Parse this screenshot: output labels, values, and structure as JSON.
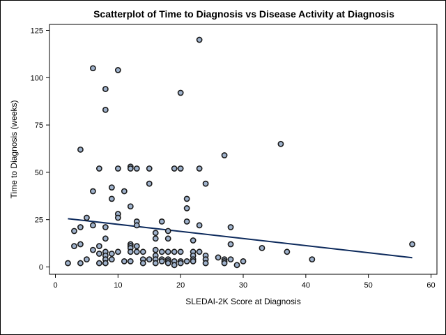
{
  "chart_data": {
    "type": "scatter",
    "title": "Scatterplot of Time to Diagnosis vs Disease Activity at Diagnosis",
    "xlabel": "SLEDAI-2K Score at Diagnosis",
    "ylabel": "Time to Diagnosis (weeks)",
    "xlim": [
      0,
      60
    ],
    "ylim": [
      -5,
      130
    ],
    "xticks": [
      0,
      10,
      20,
      30,
      40,
      50,
      60
    ],
    "yticks": [
      0,
      25,
      50,
      75,
      100,
      125
    ],
    "grid": false,
    "marker_color": "#9fb2cc",
    "marker_edge_color": "#1a1a1a",
    "trendline_color": "#0d2a5c",
    "trendline": {
      "x": [
        2,
        57
      ],
      "y": [
        25.5,
        4.9
      ]
    },
    "points": [
      {
        "x": 2,
        "y": 2
      },
      {
        "x": 3,
        "y": 19
      },
      {
        "x": 3,
        "y": 11
      },
      {
        "x": 4,
        "y": 62
      },
      {
        "x": 4,
        "y": 21
      },
      {
        "x": 4,
        "y": 12
      },
      {
        "x": 4,
        "y": 2
      },
      {
        "x": 5,
        "y": 26
      },
      {
        "x": 5,
        "y": 4
      },
      {
        "x": 6,
        "y": 105
      },
      {
        "x": 6,
        "y": 40
      },
      {
        "x": 6,
        "y": 22
      },
      {
        "x": 6,
        "y": 9
      },
      {
        "x": 7,
        "y": 52
      },
      {
        "x": 7,
        "y": 11
      },
      {
        "x": 7,
        "y": 7
      },
      {
        "x": 7,
        "y": 2
      },
      {
        "x": 8,
        "y": 94
      },
      {
        "x": 8,
        "y": 83
      },
      {
        "x": 8,
        "y": 21
      },
      {
        "x": 8,
        "y": 15
      },
      {
        "x": 8,
        "y": 8
      },
      {
        "x": 8,
        "y": 6
      },
      {
        "x": 8,
        "y": 4
      },
      {
        "x": 8,
        "y": 2
      },
      {
        "x": 9,
        "y": 42
      },
      {
        "x": 9,
        "y": 36
      },
      {
        "x": 9,
        "y": 7
      },
      {
        "x": 9,
        "y": 4
      },
      {
        "x": 10,
        "y": 104
      },
      {
        "x": 10,
        "y": 52
      },
      {
        "x": 10,
        "y": 28
      },
      {
        "x": 10,
        "y": 26
      },
      {
        "x": 10,
        "y": 8
      },
      {
        "x": 11,
        "y": 40
      },
      {
        "x": 11,
        "y": 3
      },
      {
        "x": 12,
        "y": 53
      },
      {
        "x": 12,
        "y": 52
      },
      {
        "x": 12,
        "y": 32
      },
      {
        "x": 12,
        "y": 12
      },
      {
        "x": 12,
        "y": 11
      },
      {
        "x": 12,
        "y": 10
      },
      {
        "x": 12,
        "y": 8
      },
      {
        "x": 12,
        "y": 3
      },
      {
        "x": 13,
        "y": 52
      },
      {
        "x": 13,
        "y": 24
      },
      {
        "x": 13,
        "y": 22
      },
      {
        "x": 13,
        "y": 11
      },
      {
        "x": 13,
        "y": 8
      },
      {
        "x": 14,
        "y": 8
      },
      {
        "x": 14,
        "y": 4
      },
      {
        "x": 14,
        "y": 2
      },
      {
        "x": 15,
        "y": 52
      },
      {
        "x": 15,
        "y": 44
      },
      {
        "x": 15,
        "y": 4
      },
      {
        "x": 16,
        "y": 18
      },
      {
        "x": 16,
        "y": 15
      },
      {
        "x": 16,
        "y": 9
      },
      {
        "x": 16,
        "y": 6
      },
      {
        "x": 16,
        "y": 4
      },
      {
        "x": 16,
        "y": 2
      },
      {
        "x": 17,
        "y": 24
      },
      {
        "x": 17,
        "y": 8
      },
      {
        "x": 17,
        "y": 4
      },
      {
        "x": 17,
        "y": 3
      },
      {
        "x": 18,
        "y": 19
      },
      {
        "x": 18,
        "y": 15
      },
      {
        "x": 18,
        "y": 8
      },
      {
        "x": 18,
        "y": 4
      },
      {
        "x": 18,
        "y": 3
      },
      {
        "x": 18,
        "y": 2
      },
      {
        "x": 19,
        "y": 52
      },
      {
        "x": 19,
        "y": 8
      },
      {
        "x": 19,
        "y": 3
      },
      {
        "x": 19,
        "y": 1
      },
      {
        "x": 20,
        "y": 92
      },
      {
        "x": 20,
        "y": 52
      },
      {
        "x": 20,
        "y": 8
      },
      {
        "x": 20,
        "y": 3
      },
      {
        "x": 20,
        "y": 2
      },
      {
        "x": 21,
        "y": 36
      },
      {
        "x": 21,
        "y": 31
      },
      {
        "x": 21,
        "y": 24
      },
      {
        "x": 21,
        "y": 3
      },
      {
        "x": 22,
        "y": 14
      },
      {
        "x": 22,
        "y": 8
      },
      {
        "x": 22,
        "y": 6
      },
      {
        "x": 22,
        "y": 4
      },
      {
        "x": 22,
        "y": 3
      },
      {
        "x": 23,
        "y": 120
      },
      {
        "x": 23,
        "y": 52
      },
      {
        "x": 23,
        "y": 22
      },
      {
        "x": 23,
        "y": 8
      },
      {
        "x": 24,
        "y": 44
      },
      {
        "x": 24,
        "y": 6
      },
      {
        "x": 24,
        "y": 4
      },
      {
        "x": 24,
        "y": 2
      },
      {
        "x": 26,
        "y": 5
      },
      {
        "x": 27,
        "y": 59
      },
      {
        "x": 27,
        "y": 4
      },
      {
        "x": 27,
        "y": 3
      },
      {
        "x": 27,
        "y": 2
      },
      {
        "x": 28,
        "y": 21
      },
      {
        "x": 28,
        "y": 12
      },
      {
        "x": 28,
        "y": 4
      },
      {
        "x": 29,
        "y": 1
      },
      {
        "x": 30,
        "y": 3
      },
      {
        "x": 33,
        "y": 10
      },
      {
        "x": 36,
        "y": 65
      },
      {
        "x": 37,
        "y": 8
      },
      {
        "x": 41,
        "y": 4
      },
      {
        "x": 57,
        "y": 12
      }
    ]
  }
}
